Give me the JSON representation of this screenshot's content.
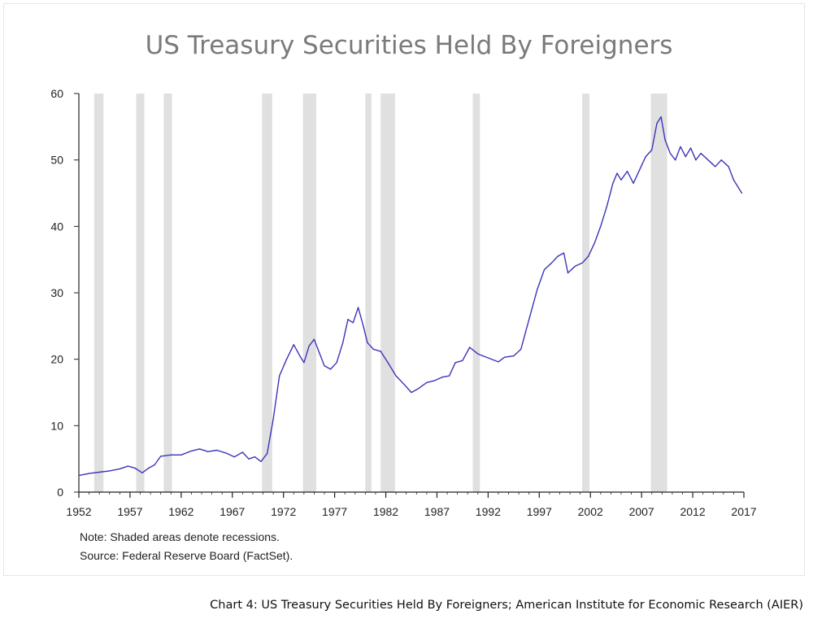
{
  "chart_data": {
    "type": "line",
    "title": "US Treasury Securities Held By Foreigners",
    "xlabel": "",
    "ylabel": "",
    "xlim": [
      1952,
      2017
    ],
    "ylim": [
      0,
      60
    ],
    "x_ticks": [
      1952,
      1957,
      1962,
      1967,
      1972,
      1977,
      1982,
      1987,
      1992,
      1997,
      2002,
      2007,
      2012,
      2017
    ],
    "y_ticks": [
      0,
      10,
      20,
      30,
      40,
      50,
      60
    ],
    "grid": false,
    "series": [
      {
        "name": "US Treasury Securities Held By Foreigners",
        "color": "#3b35b8",
        "points": [
          [
            1952.0,
            2.5
          ],
          [
            1953.0,
            2.8
          ],
          [
            1954.0,
            3.0
          ],
          [
            1955.0,
            3.2
          ],
          [
            1956.0,
            3.5
          ],
          [
            1956.8,
            3.9
          ],
          [
            1957.5,
            3.6
          ],
          [
            1958.2,
            2.9
          ],
          [
            1958.8,
            3.6
          ],
          [
            1959.4,
            4.1
          ],
          [
            1960.0,
            5.4
          ],
          [
            1961.0,
            5.6
          ],
          [
            1962.0,
            5.6
          ],
          [
            1963.0,
            6.2
          ],
          [
            1963.8,
            6.5
          ],
          [
            1964.6,
            6.1
          ],
          [
            1965.5,
            6.3
          ],
          [
            1966.5,
            5.8
          ],
          [
            1967.2,
            5.3
          ],
          [
            1968.0,
            6.0
          ],
          [
            1968.6,
            5.0
          ],
          [
            1969.2,
            5.3
          ],
          [
            1969.8,
            4.6
          ],
          [
            1970.4,
            5.8
          ],
          [
            1971.0,
            11.0
          ],
          [
            1971.6,
            17.5
          ],
          [
            1972.3,
            20.0
          ],
          [
            1973.0,
            22.2
          ],
          [
            1973.6,
            20.5
          ],
          [
            1974.0,
            19.5
          ],
          [
            1974.5,
            22.0
          ],
          [
            1975.0,
            23.0
          ],
          [
            1975.5,
            21.0
          ],
          [
            1976.0,
            19.0
          ],
          [
            1976.6,
            18.5
          ],
          [
            1977.2,
            19.5
          ],
          [
            1977.8,
            22.5
          ],
          [
            1978.3,
            26.0
          ],
          [
            1978.8,
            25.5
          ],
          [
            1979.3,
            27.8
          ],
          [
            1979.8,
            25.0
          ],
          [
            1980.2,
            22.5
          ],
          [
            1980.8,
            21.5
          ],
          [
            1981.5,
            21.2
          ],
          [
            1982.2,
            19.5
          ],
          [
            1983.0,
            17.5
          ],
          [
            1983.8,
            16.2
          ],
          [
            1984.5,
            15.0
          ],
          [
            1985.2,
            15.6
          ],
          [
            1986.0,
            16.5
          ],
          [
            1986.8,
            16.8
          ],
          [
            1987.5,
            17.3
          ],
          [
            1988.2,
            17.5
          ],
          [
            1988.8,
            19.5
          ],
          [
            1989.5,
            19.8
          ],
          [
            1990.2,
            21.8
          ],
          [
            1991.0,
            20.8
          ],
          [
            1992.0,
            20.2
          ],
          [
            1993.0,
            19.6
          ],
          [
            1993.6,
            20.3
          ],
          [
            1994.5,
            20.5
          ],
          [
            1995.2,
            21.5
          ],
          [
            1996.0,
            26.0
          ],
          [
            1996.8,
            30.5
          ],
          [
            1997.5,
            33.5
          ],
          [
            1998.2,
            34.5
          ],
          [
            1998.8,
            35.5
          ],
          [
            1999.4,
            36.0
          ],
          [
            1999.8,
            33.0
          ],
          [
            2000.5,
            34.0
          ],
          [
            2001.2,
            34.5
          ],
          [
            2001.8,
            35.5
          ],
          [
            2002.4,
            37.5
          ],
          [
            2003.0,
            40.0
          ],
          [
            2003.6,
            43.0
          ],
          [
            2004.2,
            46.5
          ],
          [
            2004.6,
            48.0
          ],
          [
            2005.0,
            47.0
          ],
          [
            2005.6,
            48.3
          ],
          [
            2006.2,
            46.5
          ],
          [
            2006.8,
            48.5
          ],
          [
            2007.4,
            50.5
          ],
          [
            2008.0,
            51.5
          ],
          [
            2008.5,
            55.5
          ],
          [
            2008.9,
            56.5
          ],
          [
            2009.3,
            53.0
          ],
          [
            2009.8,
            51.0
          ],
          [
            2010.3,
            50.0
          ],
          [
            2010.8,
            52.0
          ],
          [
            2011.3,
            50.5
          ],
          [
            2011.8,
            51.8
          ],
          [
            2012.3,
            50.0
          ],
          [
            2012.8,
            51.0
          ],
          [
            2013.5,
            50.0
          ],
          [
            2014.2,
            49.0
          ],
          [
            2014.8,
            50.0
          ],
          [
            2015.5,
            49.0
          ],
          [
            2016.0,
            47.0
          ],
          [
            2016.4,
            46.0
          ],
          [
            2016.8,
            45.0
          ]
        ]
      }
    ],
    "recessions": [
      [
        1953.5,
        1954.4
      ],
      [
        1957.6,
        1958.4
      ],
      [
        1960.3,
        1961.1
      ],
      [
        1969.9,
        1970.9
      ],
      [
        1973.9,
        1975.2
      ],
      [
        1980.0,
        1980.6
      ],
      [
        1981.5,
        1982.9
      ],
      [
        1990.5,
        1991.2
      ],
      [
        2001.2,
        2001.9
      ],
      [
        2007.9,
        2009.5
      ]
    ],
    "recession_color": "#e0e0e0",
    "axis_color": "#222222"
  },
  "notes": {
    "line1": "Note: Shaded areas denote recessions.",
    "line2": "Source: Federal Reserve Board (FactSet)."
  },
  "caption": "Chart 4: US Treasury Securities Held By Foreigners; American Institute for Economic Research (AIER)"
}
